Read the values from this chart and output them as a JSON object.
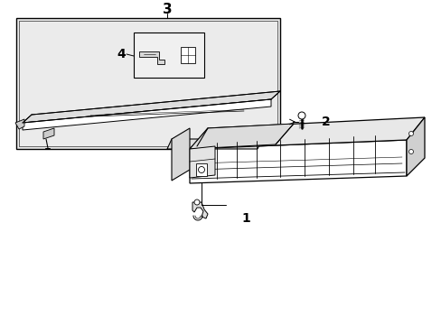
{
  "background_color": "#ffffff",
  "line_color": "#000000",
  "gray_fill": "#e8e8e8",
  "light_fill": "#f2f2f2",
  "mid_fill": "#d0d0d0",
  "label_1": "1",
  "label_2": "2",
  "label_3": "3",
  "label_4": "4",
  "label_fontsize": 10,
  "figsize": [
    4.89,
    3.6
  ],
  "dpi": 100
}
